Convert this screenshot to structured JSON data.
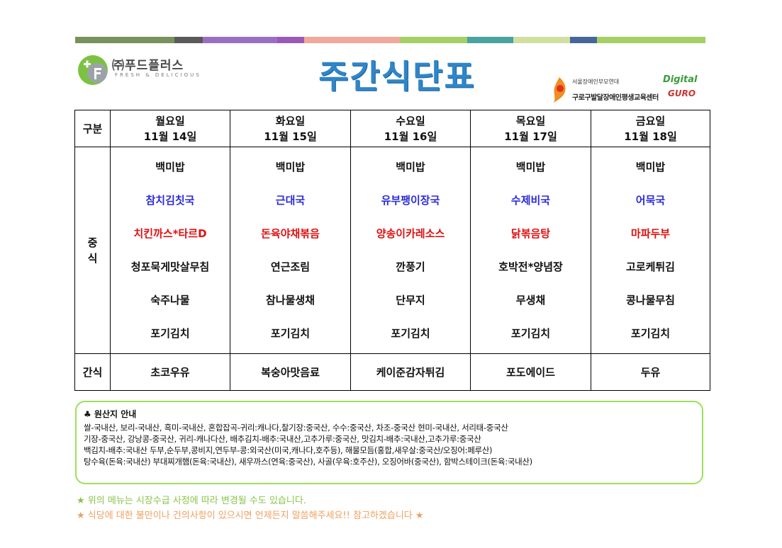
{
  "header": {
    "bar_colors": [
      "#77925a",
      "#5a5a5a",
      "#9a6fc0",
      "#9b59b6",
      "#f2a89a",
      "#f2a89a",
      "#a5cf63",
      "#4aa3a0",
      "#cfe0a0",
      "#46669a",
      "#a5cf63",
      "#a5cf63"
    ],
    "logo_name": "㈜푸드플러스",
    "logo_tagline": "FRESH & DELICIOUS",
    "title": "주간식단표",
    "institution_small": "서울장애인부모연대",
    "institution_name": "구로구발달장애인평생교육센터",
    "institution_digital": "Digital",
    "institution_guro": "GURO"
  },
  "table": {
    "category_header": "구분",
    "days": [
      {
        "day": "월요일",
        "date": "11월 14일"
      },
      {
        "day": "화요일",
        "date": "11월 15일"
      },
      {
        "day": "수요일",
        "date": "11월 16일"
      },
      {
        "day": "목요일",
        "date": "11월 17일"
      },
      {
        "day": "금요일",
        "date": "11월 18일"
      }
    ],
    "lunch_label_1": "중",
    "lunch_label_2": "식",
    "lunch": [
      [
        "백미밥",
        "참치김칫국",
        "치킨까스*타르D",
        "청포묵게맛살무침",
        "숙주나물",
        "포기김치"
      ],
      [
        "백미밥",
        "근대국",
        "돈육야채볶음",
        "연근조림",
        "참나물생채",
        "포기김치"
      ],
      [
        "백미밥",
        "유부팽이장국",
        "양송이카레소스",
        "깐풍기",
        "단무지",
        "포기김치"
      ],
      [
        "백미밥",
        "수제비국",
        "닭볶음탕",
        "호박전*양념장",
        "무생채",
        "포기김치"
      ],
      [
        "백미밥",
        "어묵국",
        "마파두부",
        "고로케튀김",
        "콩나물무침",
        "포기김치"
      ]
    ],
    "dish_colors": [
      "#111111",
      "#2b2bd9",
      "#e01010",
      "#111111",
      "#111111",
      "#111111"
    ],
    "snack_label": "간식",
    "snacks": [
      "초코우유",
      "복숭아맛음료",
      "케이준감자튀김",
      "포도에이드",
      "두유"
    ]
  },
  "origin": {
    "title": "♣ 원산지 안내",
    "lines": [
      "쌀-국내산,  보리-국내산,  흑미-국내산,  혼합잡곡-귀리:캐나다,찰기장:중국산,   수수:중국산,  차조-중국산  현미-국내산,     서리태-중국산",
      "기장-중국산,  강낭콩-중국산,  귀리-캐나다산,  배추김치-배추:국내산,고추가루:중국산,  맛김치-배추:국내산,고추가루:중국산",
      "백김치-배추:국내산  두부,순두부,콩비지,연두부-콩:외국산(미국,캐나다,호주등),  해물모듬(홍합,새우살:중국산/오징어:페루산)",
      "탕수육(돈육:국내산)  부대찌개햄(돈육:국내산),  새우까스(연육:중국산),  사골(우육:호주산),  오징어바(중국산),  함박스테이크(돈육:국내산)"
    ]
  },
  "notes": {
    "note1": "★  위의  메뉴는  시장수급  사정에  따라  변경될  수도  있습니다.",
    "note2": "★  식당에  대한  불만이나  건의사항이  있으시면  언제든지  말씀해주세요!!  참고하겠습니다  ★"
  }
}
